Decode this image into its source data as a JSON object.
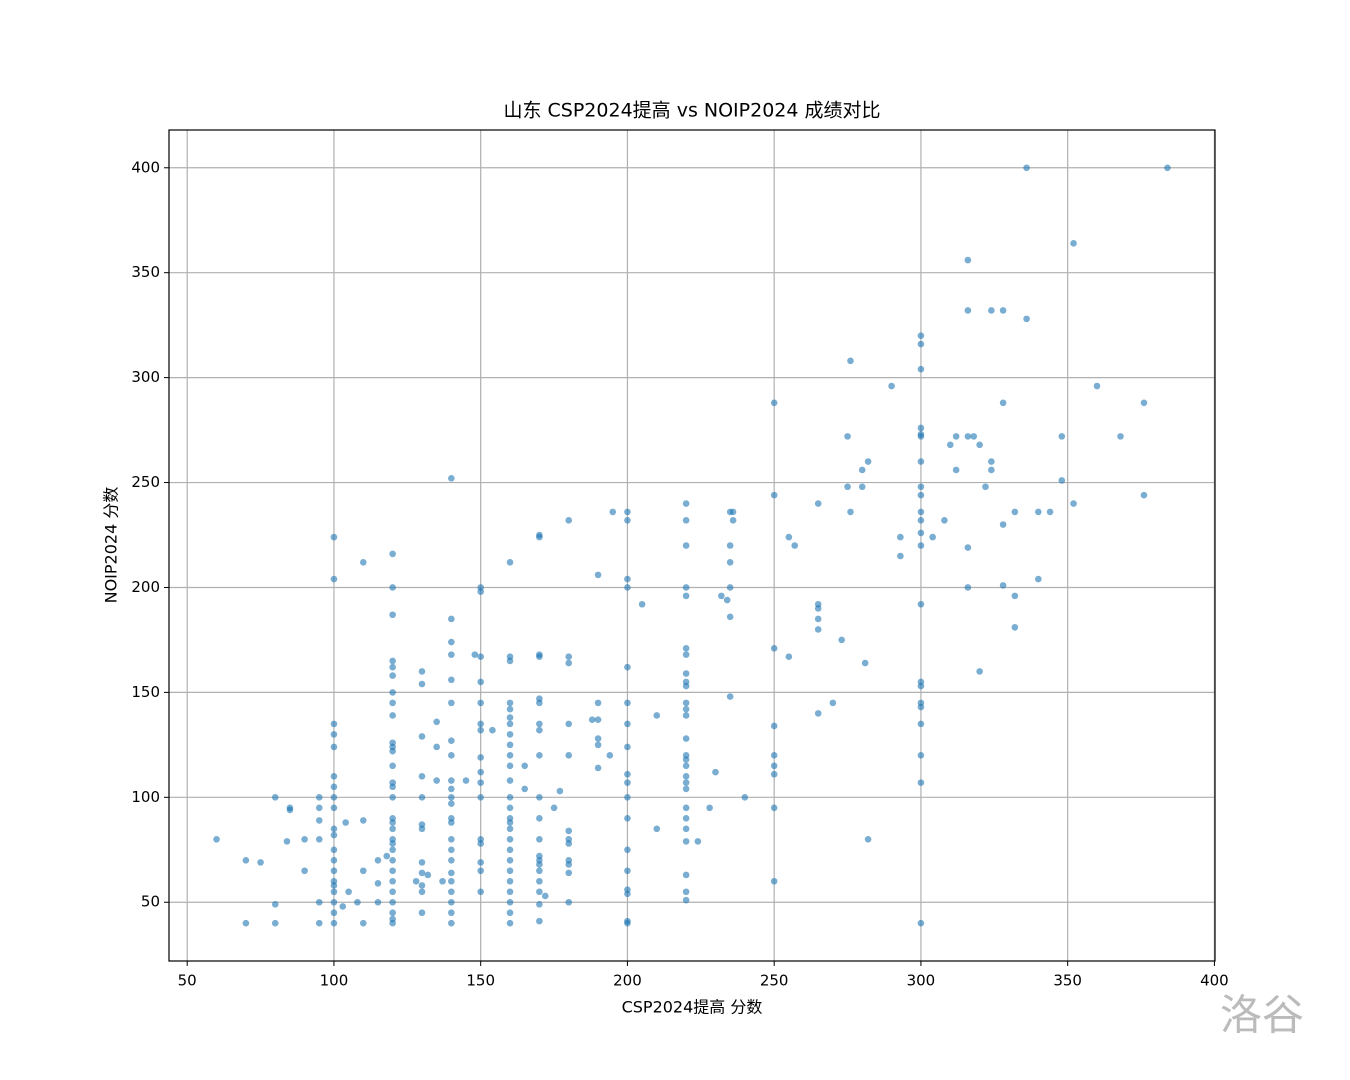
{
  "chart_data": {
    "type": "scatter",
    "title": "山东 CSP2024提高 vs NOIP2024 成绩对比",
    "x_label": "CSP2024提高 分数",
    "y_label": "NOIP2024 分数",
    "watermark": "洛谷",
    "color": "#1f77b4",
    "alpha": 0.6,
    "grid": true,
    "xlim": [
      43.8,
      400.2
    ],
    "ylim": [
      22,
      418
    ],
    "xticks": [
      50,
      100,
      150,
      200,
      250,
      300,
      350,
      400
    ],
    "yticks": [
      50,
      100,
      150,
      200,
      250,
      300,
      350,
      400
    ],
    "x": [
      60,
      70,
      70,
      75,
      80,
      80,
      80,
      84,
      85,
      85,
      90,
      90,
      95,
      95,
      95,
      95,
      95,
      95,
      100,
      100,
      100,
      100,
      100,
      100,
      100,
      100,
      100,
      100,
      100,
      100,
      100,
      100,
      100,
      100,
      100,
      100,
      100,
      100,
      103,
      104,
      105,
      108,
      110,
      110,
      110,
      110,
      115,
      115,
      115,
      118,
      120,
      120,
      120,
      120,
      120,
      120,
      120,
      120,
      120,
      120,
      120,
      120,
      120,
      120,
      120,
      120,
      120,
      120,
      120,
      120,
      120,
      120,
      120,
      120,
      120,
      120,
      120,
      120,
      120,
      120,
      128,
      130,
      130,
      130,
      130,
      130,
      130,
      130,
      130,
      130,
      130,
      130,
      130,
      132,
      135,
      135,
      135,
      137,
      140,
      140,
      140,
      140,
      140,
      140,
      140,
      140,
      140,
      140,
      140,
      140,
      140,
      140,
      140,
      140,
      140,
      140,
      140,
      140,
      140,
      140,
      140,
      145,
      148,
      150,
      150,
      150,
      150,
      150,
      150,
      150,
      150,
      150,
      150,
      150,
      150,
      150,
      150,
      150,
      150,
      154,
      160,
      160,
      160,
      160,
      160,
      160,
      160,
      160,
      160,
      160,
      160,
      160,
      160,
      160,
      160,
      160,
      160,
      160,
      160,
      160,
      160,
      160,
      160,
      160,
      160,
      160,
      165,
      165,
      170,
      170,
      170,
      170,
      170,
      170,
      170,
      170,
      170,
      170,
      170,
      170,
      170,
      170,
      170,
      170,
      170,
      170,
      170,
      170,
      172,
      175,
      177,
      180,
      180,
      180,
      180,
      180,
      180,
      180,
      180,
      180,
      180,
      180,
      180,
      188,
      190,
      190,
      190,
      190,
      190,
      190,
      194,
      195,
      200,
      200,
      200,
      200,
      200,
      200,
      200,
      200,
      200,
      200,
      200,
      200,
      200,
      200,
      200,
      200,
      200,
      200,
      205,
      210,
      210,
      220,
      220,
      220,
      220,
      220,
      220,
      220,
      220,
      220,
      220,
      220,
      220,
      220,
      220,
      220,
      220,
      220,
      220,
      220,
      220,
      220,
      220,
      220,
      220,
      220,
      220,
      220,
      224,
      228,
      230,
      232,
      234,
      235,
      235,
      235,
      235,
      235,
      235,
      236,
      236,
      240,
      250,
      250,
      250,
      250,
      250,
      250,
      250,
      250,
      250,
      255,
      255,
      257,
      265,
      265,
      265,
      265,
      265,
      265,
      270,
      273,
      275,
      275,
      276,
      276,
      280,
      280,
      281,
      282,
      282,
      290,
      293,
      293,
      300,
      300,
      300,
      300,
      300,
      300,
      300,
      300,
      300,
      300,
      300,
      300,
      300,
      300,
      300,
      300,
      300,
      300,
      300,
      300,
      300,
      300,
      304,
      308,
      310,
      312,
      312,
      316,
      316,
      316,
      316,
      316,
      318,
      320,
      320,
      322,
      324,
      324,
      324,
      328,
      328,
      328,
      328,
      332,
      332,
      332,
      336,
      336,
      340,
      340,
      344,
      348,
      348,
      352,
      352,
      360,
      368,
      376,
      376,
      384
    ],
    "values": [
      80,
      70,
      40,
      69,
      100,
      49,
      40,
      79,
      95,
      94,
      80,
      65,
      100,
      95,
      89,
      80,
      50,
      40,
      224,
      204,
      135,
      130,
      124,
      110,
      105,
      100,
      95,
      85,
      82,
      75,
      70,
      65,
      60,
      58,
      55,
      50,
      45,
      40,
      48,
      88,
      55,
      50,
      212,
      89,
      65,
      40,
      70,
      59,
      50,
      72,
      216,
      200,
      187,
      165,
      162,
      158,
      150,
      145,
      139,
      126,
      124,
      122,
      115,
      107,
      105,
      100,
      90,
      88,
      85,
      80,
      78,
      75,
      70,
      65,
      60,
      55,
      50,
      45,
      42,
      40,
      60,
      160,
      154,
      129,
      110,
      100,
      87,
      85,
      69,
      64,
      58,
      55,
      45,
      63,
      136,
      124,
      108,
      60,
      252,
      185,
      174,
      168,
      156,
      145,
      127,
      120,
      108,
      104,
      100,
      97,
      90,
      88,
      80,
      75,
      70,
      64,
      60,
      55,
      50,
      45,
      40,
      108,
      168,
      200,
      198,
      167,
      155,
      145,
      135,
      132,
      119,
      112,
      107,
      100,
      80,
      78,
      69,
      65,
      55,
      132,
      212,
      167,
      165,
      145,
      142,
      138,
      135,
      130,
      125,
      120,
      115,
      108,
      100,
      95,
      90,
      88,
      85,
      80,
      75,
      70,
      65,
      60,
      55,
      50,
      45,
      40,
      115,
      104,
      225,
      224,
      168,
      167,
      147,
      145,
      135,
      132,
      120,
      100,
      90,
      80,
      72,
      70,
      68,
      65,
      60,
      55,
      49,
      41,
      53,
      95,
      103,
      232,
      167,
      164,
      135,
      120,
      84,
      80,
      78,
      70,
      68,
      64,
      50,
      137,
      206,
      145,
      137,
      128,
      125,
      114,
      120,
      236,
      236,
      232,
      204,
      200,
      162,
      145,
      135,
      124,
      111,
      107,
      100,
      90,
      75,
      65,
      56,
      54,
      41,
      40,
      192,
      139,
      85,
      240,
      232,
      220,
      200,
      196,
      171,
      168,
      159,
      155,
      153,
      145,
      142,
      139,
      128,
      120,
      118,
      115,
      110,
      107,
      104,
      95,
      90,
      85,
      79,
      63,
      55,
      51,
      79,
      95,
      112,
      196,
      194,
      236,
      220,
      212,
      200,
      186,
      148,
      236,
      232,
      100,
      288,
      244,
      171,
      134,
      120,
      115,
      111,
      95,
      60,
      224,
      167,
      220,
      240,
      192,
      190,
      185,
      180,
      140,
      145,
      175,
      272,
      248,
      308,
      236,
      256,
      248,
      164,
      260,
      80,
      296,
      224,
      215,
      320,
      316,
      304,
      276,
      273,
      272,
      260,
      248,
      244,
      236,
      232,
      226,
      220,
      192,
      155,
      153,
      145,
      143,
      135,
      120,
      107,
      40,
      224,
      232,
      268,
      272,
      256,
      356,
      332,
      272,
      219,
      200,
      272,
      268,
      160,
      248,
      332,
      260,
      256,
      332,
      288,
      230,
      201,
      236,
      196,
      181,
      400,
      328,
      236,
      204,
      236,
      272,
      251,
      364,
      240,
      296,
      272,
      288,
      244,
      400
    ]
  }
}
